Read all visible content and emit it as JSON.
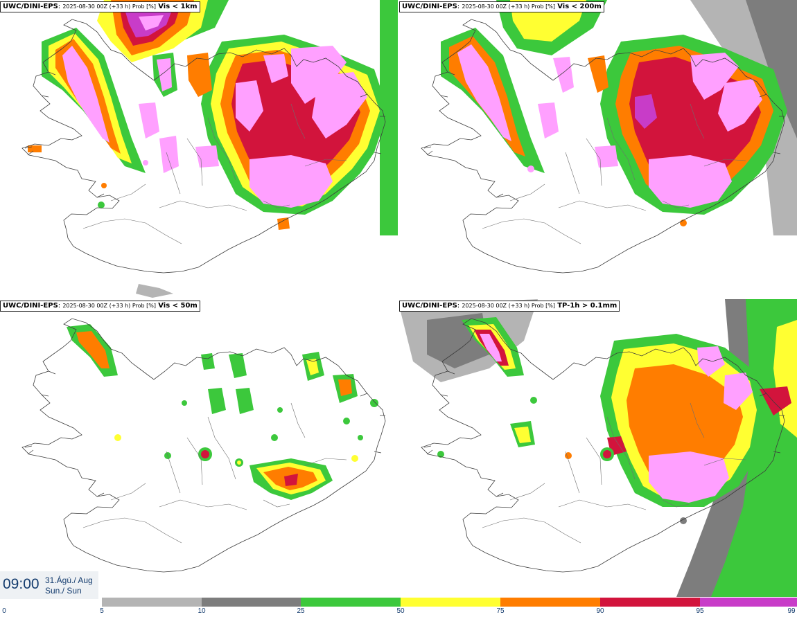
{
  "panels": [
    {
      "title_prefix": "UWC/DINI-EPS",
      "title_run": "2025-08-30 00Z (+33 h) Prob [%]",
      "title_var": "Vis < 1km"
    },
    {
      "title_prefix": "UWC/DINI-EPS",
      "title_run": "2025-08-30 00Z (+33 h) Prob [%]",
      "title_var": "Vis < 200m"
    },
    {
      "title_prefix": "UWC/DINI-EPS",
      "title_run": "2025-08-30 00Z (+33 h) Prob [%]",
      "title_var": "Vis < 50m"
    },
    {
      "title_prefix": "UWC/DINI-EPS",
      "title_run": "2025-08-30 00Z (+33 h) Prob [%]",
      "title_var": "TP-1h > 0.1mm"
    }
  ],
  "valid_time": {
    "time": "09:00",
    "date_line1": "31.Ágú./ Aug",
    "date_line2": "Sun./ Sun"
  },
  "legend": {
    "ticks": [
      "0",
      "5",
      "10",
      "25",
      "50",
      "75",
      "90",
      "95",
      "99"
    ],
    "colors": [
      "#ffffff",
      "#b4b4b4",
      "#7d7d7d",
      "#3cc83c",
      "#ffff32",
      "#ff7d00",
      "#d2143c",
      "#c83cc8",
      "#ffa0ff"
    ]
  }
}
